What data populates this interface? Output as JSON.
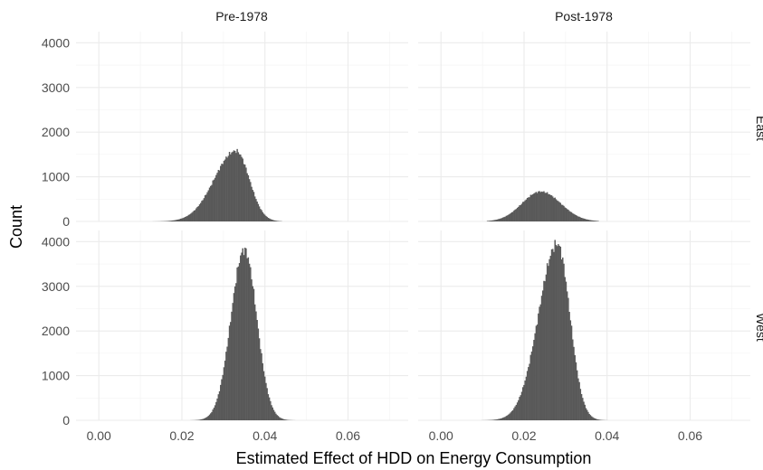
{
  "chart_data": {
    "type": "histogram",
    "facet_columns": [
      "Pre-1978",
      "Post-1978"
    ],
    "facet_rows": [
      "East",
      "West"
    ],
    "xlabel": "Estimated Effect of HDD on Energy Consumption",
    "ylabel": "Count",
    "x_ticks": [
      0.0,
      0.02,
      0.04,
      0.06
    ],
    "x_tick_labels": [
      "0.00",
      "0.02",
      "0.04",
      "0.06"
    ],
    "y_ticks": [
      0,
      1000,
      2000,
      3000,
      4000
    ],
    "y_tick_labels": [
      "0",
      "1000",
      "2000",
      "3000",
      "4000"
    ],
    "xlim": [
      -0.0055,
      0.0745
    ],
    "ylim": [
      0,
      4250
    ],
    "grid": true,
    "bar_color": "#595959",
    "panels": [
      {
        "row": "East",
        "col": "Pre-1978",
        "peak_x": 0.033,
        "peak_count": 1580,
        "sd_left": 0.0052,
        "sd_right": 0.0032,
        "x_min": 0.012,
        "x_max": 0.044
      },
      {
        "row": "East",
        "col": "Post-1978",
        "peak_x": 0.024,
        "peak_count": 670,
        "sd_left": 0.0045,
        "sd_right": 0.0048,
        "x_min": 0.011,
        "x_max": 0.038
      },
      {
        "row": "West",
        "col": "Pre-1978",
        "peak_x": 0.035,
        "peak_count": 3820,
        "sd_left": 0.0032,
        "sd_right": 0.003,
        "x_min": 0.019,
        "x_max": 0.053
      },
      {
        "row": "West",
        "col": "Post-1978",
        "peak_x": 0.028,
        "peak_count": 3950,
        "sd_left": 0.0045,
        "sd_right": 0.003,
        "x_min": 0.006,
        "x_max": 0.044
      }
    ]
  }
}
